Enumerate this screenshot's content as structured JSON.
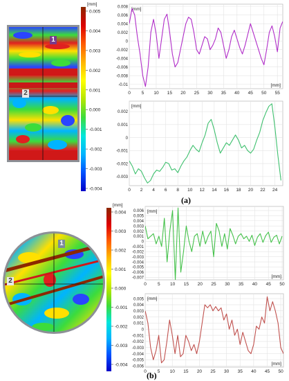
{
  "figure": {
    "label_a": "(a)",
    "label_b": "(b)"
  },
  "panel_a": {
    "map_markers": [
      "1",
      "2"
    ],
    "colorbar": {
      "unit": "[mm]",
      "ticks": [
        "0.005",
        "0.004",
        "0.003",
        "0.002",
        "0.001",
        "0.000",
        "-0.001",
        "-0.002",
        "-0.003",
        "-0.004"
      ],
      "colors": [
        "#0000c8",
        "#0050ff",
        "#00b4ff",
        "#00e6dc",
        "#3cdc3c",
        "#b4e600",
        "#ffff00",
        "#ffb400",
        "#ff5a00",
        "#dc0000",
        "#8c2800"
      ]
    }
  },
  "panel_b": {
    "map_markers": [
      "1",
      "2"
    ],
    "colorbar": {
      "unit": "[mm]",
      "ticks": [
        "0.004",
        "0.003",
        "0.002",
        "0.001",
        "0.000",
        "-0.001",
        "-0.002",
        "-0.003",
        "-0.004"
      ],
      "colors": [
        "#0000c8",
        "#0050ff",
        "#00b4ff",
        "#00e6dc",
        "#3cdc3c",
        "#b4e600",
        "#ffff00",
        "#ffb400",
        "#ff5a00",
        "#dc0000",
        "#8c2800"
      ]
    }
  },
  "chart_data": [
    {
      "type": "line",
      "panel": "a",
      "xlabel": "[mm]",
      "ylabel": "[mm]",
      "xlim": [
        0,
        57
      ],
      "ylim": [
        -0.011,
        0.0085
      ],
      "xticks": [
        0,
        5,
        10,
        15,
        20,
        25,
        30,
        35,
        40,
        45,
        50,
        55
      ],
      "yticks": [
        0.008,
        0.006,
        0.004,
        0.002,
        0,
        -0.002,
        -0.004,
        -0.006,
        -0.008,
        -0.01
      ],
      "ytick_labels": [
        "0.008",
        "0.006",
        "0.004",
        "0.002",
        "0",
        "-0.002",
        "-0.004",
        "-0.006",
        "-0.008",
        "-0.01"
      ],
      "grid": true,
      "color": "#b02cc8",
      "x": [
        0,
        1,
        2,
        3,
        4,
        5,
        6,
        7,
        8,
        9,
        10,
        11,
        12,
        13,
        14,
        15,
        16,
        17,
        18,
        19,
        20,
        21,
        22,
        23,
        24,
        25,
        26,
        27,
        28,
        29,
        30,
        31,
        32,
        33,
        34,
        35,
        36,
        37,
        38,
        39,
        40,
        41,
        42,
        43,
        44,
        45,
        46,
        47,
        48,
        49,
        50,
        51,
        52,
        53,
        54,
        55,
        56,
        57
      ],
      "y": [
        0.004,
        0.0075,
        0.006,
        0.001,
        -0.003,
        -0.008,
        -0.0105,
        -0.006,
        0.002,
        0.005,
        0.0015,
        -0.004,
        0.0005,
        0.005,
        0.0062,
        0.002,
        -0.003,
        -0.006,
        -0.005,
        -0.002,
        0.001,
        0.004,
        0.0055,
        0.005,
        0.002,
        -0.002,
        -0.003,
        -0.001,
        0.001,
        0.0005,
        -0.002,
        -0.001,
        0.0005,
        0.003,
        0.002,
        -0.001,
        -0.004,
        -0.002,
        0.001,
        0.0025,
        0.0005,
        -0.0015,
        -0.003,
        -0.001,
        0.0015,
        0.004,
        0.002,
        0.0,
        -0.002,
        -0.004,
        -0.0055,
        -0.002,
        0.002,
        0.0035,
        0.001,
        -0.0025,
        0.003,
        0.0045
      ]
    },
    {
      "type": "line",
      "panel": "a",
      "xlabel": "",
      "ylabel": "[mm]",
      "xlim": [
        0,
        25.3
      ],
      "ylim": [
        -0.0037,
        0.0028
      ],
      "xticks": [
        0,
        2,
        4,
        6,
        8,
        10,
        12,
        14,
        16,
        18,
        20,
        22,
        24
      ],
      "yticks": [
        0.002,
        0.001,
        0,
        -0.001,
        -0.002,
        -0.003
      ],
      "ytick_labels": [
        "0.002",
        "0.001",
        "0",
        "-0.001",
        "-0.002",
        "-0.003"
      ],
      "grid": true,
      "color": "#3ec06e",
      "x": [
        0,
        0.5,
        1,
        1.5,
        2,
        2.5,
        3,
        3.5,
        4,
        4.5,
        5,
        5.5,
        6,
        6.5,
        7,
        7.5,
        8,
        8.5,
        9,
        9.5,
        10,
        10.5,
        11,
        11.5,
        12,
        12.5,
        13,
        13.5,
        14,
        14.5,
        15,
        15.5,
        16,
        16.5,
        17,
        17.5,
        18,
        18.5,
        19,
        19.5,
        20,
        20.5,
        21,
        21.5,
        22,
        22.5,
        23,
        23.5,
        24,
        24.5,
        25
      ],
      "y": [
        -0.0018,
        -0.0022,
        -0.0028,
        -0.0024,
        -0.0026,
        -0.0031,
        -0.0035,
        -0.0033,
        -0.0028,
        -0.0025,
        -0.0026,
        -0.0023,
        -0.0019,
        -0.002,
        -0.0025,
        -0.0024,
        -0.0027,
        -0.0022,
        -0.0018,
        -0.0015,
        -0.001,
        -0.0006,
        -0.0009,
        -0.0011,
        -0.0004,
        0.0002,
        0.0011,
        0.0014,
        0.0006,
        -0.0004,
        -0.0012,
        -0.0008,
        -0.0004,
        -0.0006,
        -0.0002,
        0.0002,
        -0.0002,
        -0.0008,
        -0.0006,
        -0.001,
        -0.0012,
        -0.0009,
        -0.0002,
        0.0004,
        0.0013,
        0.0019,
        0.0024,
        0.0026,
        0.0008,
        -0.0014,
        -0.0033
      ]
    },
    {
      "type": "line",
      "panel": "b",
      "xlabel": "[mm]",
      "ylabel": "[mm]",
      "xlim": [
        0,
        50.5
      ],
      "ylim": [
        -0.0075,
        0.0068
      ],
      "xticks": [
        0,
        5,
        10,
        15,
        20,
        25,
        30,
        35,
        40,
        45,
        50
      ],
      "yticks": [
        0.006,
        0.005,
        0.004,
        0.003,
        0.002,
        0.001,
        0,
        -0.001,
        -0.002,
        -0.003,
        -0.004,
        -0.005,
        -0.006,
        -0.007
      ],
      "ytick_labels": [
        "0.006",
        "0.005",
        "0.004",
        "0.003",
        "0.002",
        "0.001",
        "0",
        "-0.001",
        "-0.002",
        "-0.003",
        "-0.004",
        "-0.005",
        "-0.006",
        "-0.007"
      ],
      "grid": true,
      "color": "#44c14a",
      "x": [
        0,
        1,
        2,
        3,
        4,
        5,
        6,
        7,
        8,
        9,
        10,
        11,
        12,
        13,
        14,
        15,
        16,
        17,
        18,
        19,
        20,
        21,
        22,
        23,
        24,
        25,
        26,
        27,
        28,
        29,
        30,
        31,
        32,
        33,
        34,
        35,
        36,
        37,
        38,
        39,
        40,
        41,
        42,
        43,
        44,
        45,
        46,
        47,
        48,
        49,
        50
      ],
      "y": [
        0.003,
        0.0005,
        0.001,
        0.0015,
        -0.0005,
        0.001,
        -0.001,
        0.0045,
        -0.004,
        0.002,
        0.006,
        -0.0075,
        0.0065,
        -0.006,
        -0.002,
        0.003,
        0.0,
        -0.002,
        0.001,
        0.0015,
        -0.001,
        0.002,
        -0.0005,
        0.001,
        0.002,
        -0.003,
        0.0035,
        0.002,
        -0.001,
        0.0015,
        -0.0015,
        0.0025,
        0.0012,
        -0.0005,
        0.001,
        0.0015,
        0.0005,
        0.001,
        0.0,
        0.0012,
        -0.0008,
        0.0008,
        0.0015,
        -0.0002,
        0.0011,
        0.0018,
        -0.0002,
        0.0008,
        0.0012,
        -0.0005,
        0.001
      ]
    },
    {
      "type": "line",
      "panel": "b",
      "xlabel": "[mm]",
      "ylabel": "[mm]",
      "xlim": [
        0,
        51
      ],
      "ylim": [
        -0.0062,
        0.0058
      ],
      "xticks": [
        0,
        5,
        10,
        15,
        20,
        25,
        30,
        35,
        40,
        45,
        50
      ],
      "yticks": [
        0.005,
        0.004,
        0.003,
        0.002,
        0.001,
        0,
        -0.001,
        -0.002,
        -0.003,
        -0.004,
        -0.005,
        -0.006
      ],
      "ytick_labels": [
        "0.005",
        "0.004",
        "0.003",
        "0.002",
        "0.001",
        "0",
        "-0.001",
        "-0.002",
        "-0.003",
        "-0.004",
        "-0.005",
        "-0.006"
      ],
      "grid": true,
      "color": "#c0504d",
      "x": [
        0,
        1,
        2,
        3,
        4,
        5,
        6,
        7,
        8,
        9,
        10,
        11,
        12,
        13,
        14,
        15,
        16,
        17,
        18,
        19,
        20,
        21,
        22,
        23,
        24,
        25,
        26,
        27,
        28,
        29,
        30,
        31,
        32,
        33,
        34,
        35,
        36,
        37,
        38,
        39,
        40,
        41,
        42,
        43,
        44,
        45,
        46,
        47,
        48,
        49,
        50,
        51
      ],
      "y": [
        0.003,
        0.001,
        -0.003,
        -0.005,
        -0.0035,
        -0.001,
        -0.0055,
        -0.005,
        -0.002,
        0.0015,
        -0.001,
        -0.004,
        -0.001,
        -0.0045,
        -0.004,
        -0.001,
        -0.002,
        -0.0035,
        -0.0025,
        -0.004,
        -0.002,
        0.001,
        0.004,
        0.0035,
        0.004,
        0.003,
        0.0037,
        0.003,
        0.0035,
        0.0015,
        0.0025,
        0.0,
        0.0015,
        -0.001,
        0.0,
        -0.0025,
        -0.0005,
        -0.002,
        -0.0035,
        -0.004,
        -0.0025,
        0.0005,
        0.0,
        0.002,
        0.001,
        0.0053,
        0.003,
        0.0045,
        0.003,
        0.001,
        -0.003,
        -0.004
      ]
    }
  ]
}
